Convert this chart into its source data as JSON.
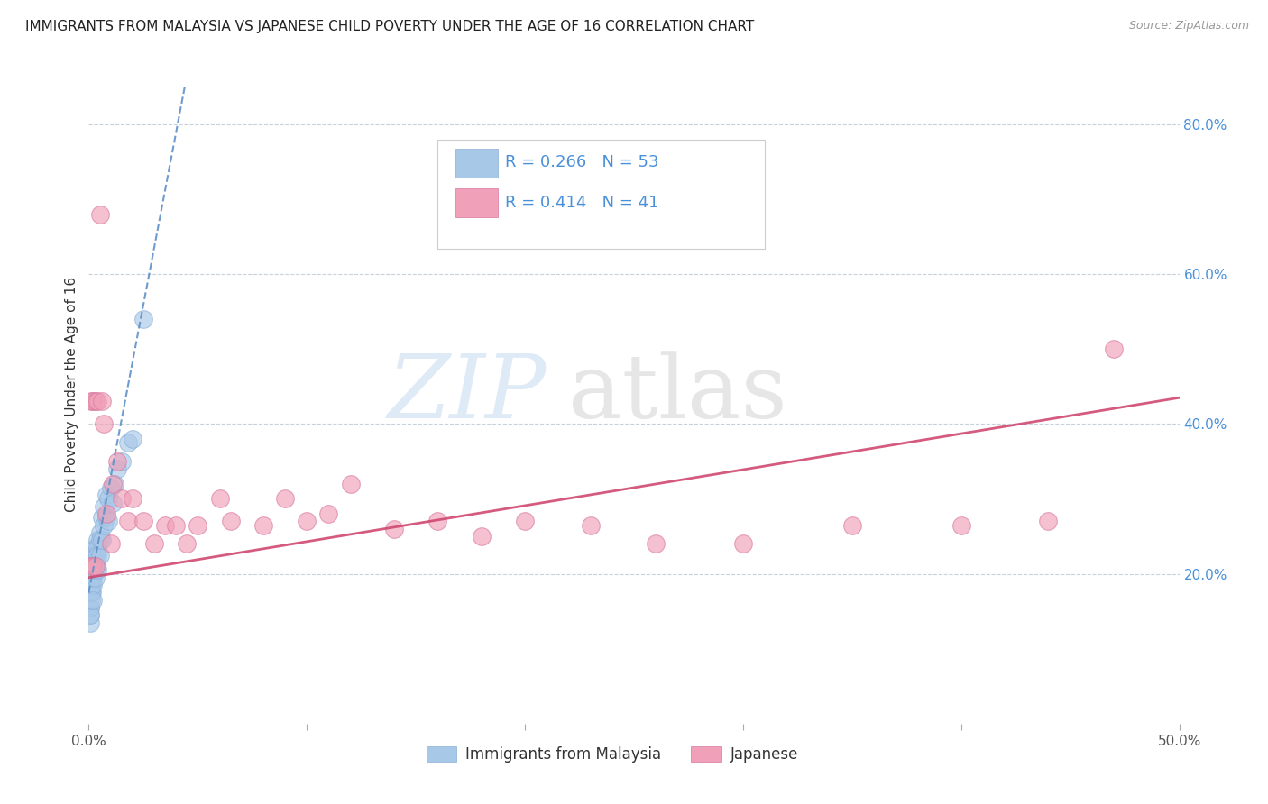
{
  "title": "IMMIGRANTS FROM MALAYSIA VS JAPANESE CHILD POVERTY UNDER THE AGE OF 16 CORRELATION CHART",
  "source": "Source: ZipAtlas.com",
  "ylabel": "Child Poverty Under the Age of 16",
  "xlim": [
    0.0,
    0.5
  ],
  "ylim": [
    0.0,
    0.88
  ],
  "xticks": [
    0.0,
    0.1,
    0.2,
    0.3,
    0.4,
    0.5
  ],
  "xticklabels": [
    "0.0%",
    "",
    "",
    "",
    "",
    "50.0%"
  ],
  "yticks_right": [
    0.2,
    0.4,
    0.6,
    0.8
  ],
  "yticklabels_right": [
    "20.0%",
    "40.0%",
    "60.0%",
    "80.0%"
  ],
  "blue_R": 0.266,
  "blue_N": 53,
  "pink_R": 0.414,
  "pink_N": 41,
  "blue_color": "#a8c8e8",
  "pink_color": "#f0a0b8",
  "blue_trend_color": "#6090c8",
  "pink_trend_color": "#d04870",
  "legend_label_blue": "Immigrants from Malaysia",
  "legend_label_pink": "Japanese",
  "blue_scatter_x": [
    0.0005,
    0.0005,
    0.0005,
    0.0008,
    0.0008,
    0.001,
    0.001,
    0.001,
    0.001,
    0.001,
    0.0012,
    0.0012,
    0.0012,
    0.0015,
    0.0015,
    0.0015,
    0.0015,
    0.002,
    0.002,
    0.002,
    0.002,
    0.002,
    0.002,
    0.0025,
    0.0025,
    0.003,
    0.003,
    0.003,
    0.003,
    0.003,
    0.004,
    0.004,
    0.004,
    0.004,
    0.005,
    0.005,
    0.005,
    0.006,
    0.006,
    0.007,
    0.007,
    0.008,
    0.008,
    0.009,
    0.009,
    0.01,
    0.011,
    0.012,
    0.013,
    0.015,
    0.018,
    0.02,
    0.025
  ],
  "blue_scatter_y": [
    0.155,
    0.145,
    0.135,
    0.155,
    0.145,
    0.205,
    0.195,
    0.185,
    0.175,
    0.165,
    0.195,
    0.185,
    0.175,
    0.215,
    0.205,
    0.195,
    0.175,
    0.225,
    0.215,
    0.205,
    0.195,
    0.185,
    0.165,
    0.225,
    0.205,
    0.235,
    0.225,
    0.215,
    0.205,
    0.195,
    0.245,
    0.235,
    0.225,
    0.205,
    0.255,
    0.245,
    0.225,
    0.275,
    0.245,
    0.29,
    0.265,
    0.305,
    0.275,
    0.3,
    0.27,
    0.315,
    0.295,
    0.32,
    0.34,
    0.35,
    0.375,
    0.38,
    0.54
  ],
  "pink_scatter_x": [
    0.001,
    0.001,
    0.002,
    0.002,
    0.003,
    0.003,
    0.004,
    0.005,
    0.006,
    0.007,
    0.008,
    0.01,
    0.011,
    0.013,
    0.015,
    0.018,
    0.02,
    0.025,
    0.03,
    0.035,
    0.04,
    0.045,
    0.05,
    0.06,
    0.065,
    0.08,
    0.09,
    0.1,
    0.11,
    0.12,
    0.14,
    0.16,
    0.18,
    0.2,
    0.23,
    0.26,
    0.3,
    0.35,
    0.4,
    0.44,
    0.47
  ],
  "pink_scatter_y": [
    0.43,
    0.21,
    0.43,
    0.21,
    0.43,
    0.21,
    0.43,
    0.68,
    0.43,
    0.4,
    0.28,
    0.24,
    0.32,
    0.35,
    0.3,
    0.27,
    0.3,
    0.27,
    0.24,
    0.265,
    0.265,
    0.24,
    0.265,
    0.3,
    0.27,
    0.265,
    0.3,
    0.27,
    0.28,
    0.32,
    0.26,
    0.27,
    0.25,
    0.27,
    0.265,
    0.24,
    0.24,
    0.265,
    0.265,
    0.27,
    0.5
  ],
  "blue_trend_x": [
    0.0,
    0.044
  ],
  "blue_trend_y": [
    0.175,
    0.85
  ],
  "pink_trend_x": [
    0.0,
    0.5
  ],
  "pink_trend_y": [
    0.195,
    0.435
  ]
}
